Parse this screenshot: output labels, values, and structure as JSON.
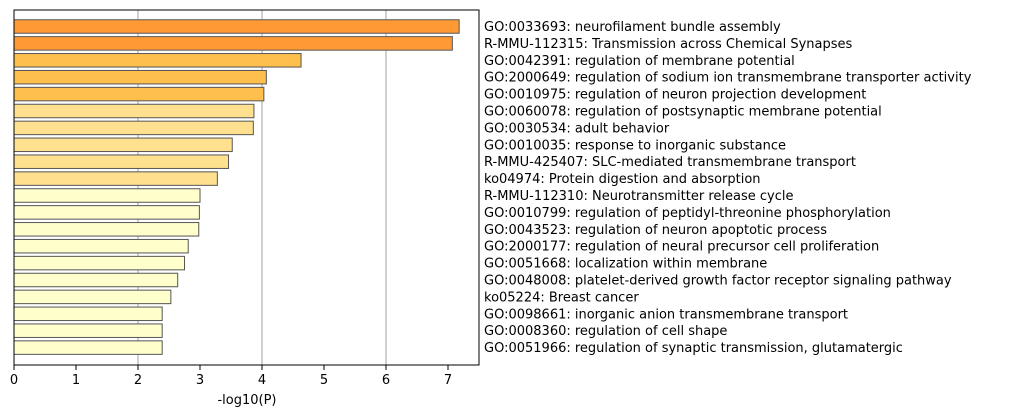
{
  "chart_data": {
    "type": "bar",
    "orientation": "horizontal",
    "title": "",
    "xlabel": "-log10(P)",
    "ylabel": "",
    "xlim": [
      0,
      7.5
    ],
    "xticks": [
      0,
      1,
      2,
      3,
      4,
      5,
      6,
      7
    ],
    "grid": "vertical lines at x = 2, 4, 6",
    "legend": "none",
    "bar_edge_color": "#555555",
    "categories": [
      "GO:0033693: neurofilament bundle assembly",
      "R-MMU-112315: Transmission across Chemical Synapses",
      "GO:0042391: regulation of membrane potential",
      "GO:2000649: regulation of sodium ion transmembrane transporter activity",
      "GO:0010975: regulation of neuron projection development",
      "GO:0060078: regulation of postsynaptic membrane potential",
      "GO:0030534: adult behavior",
      "GO:0010035: response to inorganic substance",
      "R-MMU-425407: SLC-mediated transmembrane transport",
      "ko04974: Protein digestion and absorption",
      "R-MMU-112310: Neurotransmitter release cycle",
      "GO:0010799: regulation of peptidyl-threonine phosphorylation",
      "GO:0043523: regulation of neuron apoptotic process",
      "GO:2000177: regulation of neural precursor cell proliferation",
      "GO:0051668: localization within membrane",
      "GO:0048008: platelet-derived growth factor receptor signaling pathway",
      "ko05224: Breast cancer",
      "GO:0098661: inorganic anion transmembrane transport",
      "GO:0008360: regulation of cell shape",
      "GO:0051966: regulation of synaptic transmission, glutamatergic"
    ],
    "values": [
      7.18,
      7.07,
      4.63,
      4.07,
      4.03,
      3.87,
      3.86,
      3.52,
      3.46,
      3.28,
      3.0,
      2.99,
      2.98,
      2.81,
      2.75,
      2.64,
      2.53,
      2.39,
      2.39,
      2.39
    ],
    "colors": [
      "#ff9933",
      "#ff9933",
      "#ffbf4c",
      "#ffbf4c",
      "#ffbf4c",
      "#ffe08f",
      "#ffe08f",
      "#ffe08f",
      "#ffe08f",
      "#ffe08f",
      "#ffffcc",
      "#ffffcc",
      "#ffffcc",
      "#ffffcc",
      "#ffffcc",
      "#ffffcc",
      "#ffffcc",
      "#ffffcc",
      "#ffffcc",
      "#ffffcc"
    ]
  }
}
